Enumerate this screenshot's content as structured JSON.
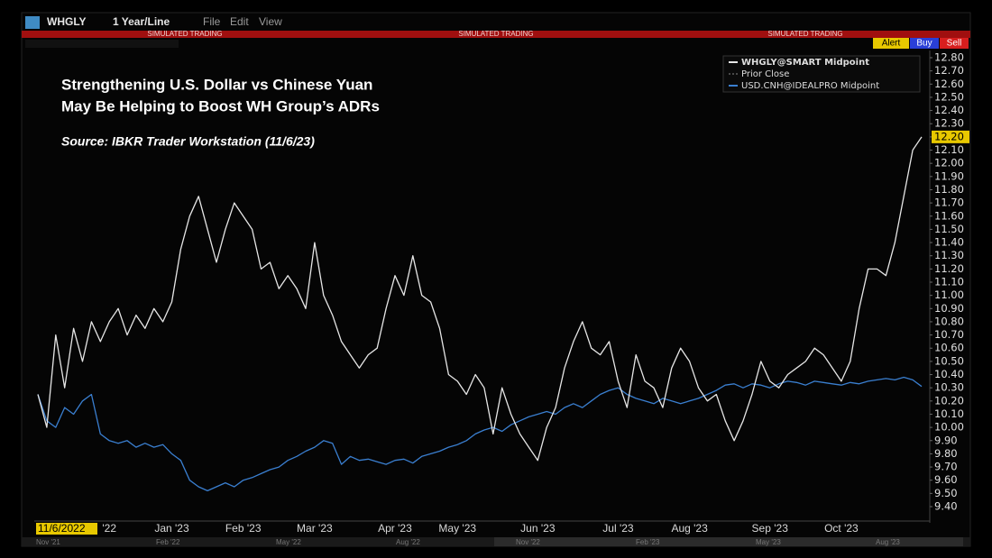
{
  "toolbar": {
    "symbol": "WHGLY",
    "period": "1 Year/Line",
    "menus": [
      "File",
      "Edit",
      "View"
    ],
    "banner": [
      "SIMULATED TRADING",
      "SIMULATED TRADING",
      "SIMULATED TRADING"
    ],
    "buttons": [
      "Alert",
      "Buy",
      "Sell"
    ]
  },
  "navigator": {
    "labels": [
      "Nov '21",
      "Feb '22",
      "May '22",
      "Aug '22",
      "Nov '22",
      "Feb '23",
      "May '23",
      "Aug '23"
    ]
  },
  "chart_data": {
    "type": "line",
    "annotations": [
      "Strengthening U.S. Dollar vs Chinese Yuan",
      "May Be Helping to Boost WH Group’s ADRs",
      "Source: IBKR Trader Workstation (11/6/23)"
    ],
    "legend_extra": "Prior Close",
    "last_price": {
      "value": 12.2,
      "label": "12.20"
    },
    "categories": [
      "11/6/2022",
      null,
      null,
      null,
      null,
      null,
      null,
      null,
      "'22",
      null,
      null,
      null,
      null,
      null,
      null,
      "Jan '23",
      null,
      null,
      null,
      null,
      null,
      null,
      null,
      "Feb '23",
      null,
      null,
      null,
      null,
      null,
      null,
      null,
      "Mar '23",
      null,
      null,
      null,
      null,
      null,
      null,
      null,
      null,
      "Apr '23",
      null,
      null,
      null,
      null,
      null,
      null,
      "May '23",
      null,
      null,
      null,
      null,
      null,
      null,
      null,
      null,
      "Jun '23",
      null,
      null,
      null,
      null,
      null,
      null,
      null,
      null,
      "Jul '23",
      null,
      null,
      null,
      null,
      null,
      null,
      null,
      "Aug '23",
      null,
      null,
      null,
      null,
      null,
      null,
      null,
      null,
      "Sep '23",
      null,
      null,
      null,
      null,
      null,
      null,
      null,
      "Oct '23",
      null,
      null,
      null,
      null,
      null,
      null,
      null,
      null,
      null
    ],
    "series": [
      {
        "name": "WHGLY@SMART Midpoint",
        "color": "#e6e6e6",
        "values": [
          10.25,
          10.0,
          10.7,
          10.3,
          10.75,
          10.5,
          10.8,
          10.65,
          10.8,
          10.9,
          10.7,
          10.85,
          10.75,
          10.9,
          10.8,
          10.95,
          11.35,
          11.6,
          11.75,
          11.5,
          11.25,
          11.5,
          11.7,
          11.6,
          11.5,
          11.2,
          11.25,
          11.05,
          11.15,
          11.05,
          10.9,
          11.4,
          11.0,
          10.85,
          10.65,
          10.55,
          10.45,
          10.55,
          10.6,
          10.9,
          11.15,
          11.0,
          11.3,
          11.0,
          10.95,
          10.75,
          10.4,
          10.35,
          10.25,
          10.4,
          10.3,
          9.95,
          10.3,
          10.1,
          9.95,
          9.85,
          9.75,
          10.0,
          10.15,
          10.45,
          10.65,
          10.8,
          10.6,
          10.55,
          10.65,
          10.35,
          10.15,
          10.55,
          10.35,
          10.3,
          10.15,
          10.45,
          10.6,
          10.5,
          10.3,
          10.2,
          10.25,
          10.05,
          9.9,
          10.05,
          10.25,
          10.5,
          10.35,
          10.3,
          10.4,
          10.45,
          10.5,
          10.6,
          10.55,
          10.45,
          10.35,
          10.5,
          10.9,
          11.2,
          11.2,
          11.15,
          11.4,
          11.75,
          12.1,
          12.2
        ]
      },
      {
        "name": "USD.CNH@IDEALPRO Midpoint",
        "color": "#3a7fd0",
        "values": [
          10.25,
          10.05,
          10.0,
          10.15,
          10.1,
          10.2,
          10.25,
          9.95,
          9.9,
          9.88,
          9.9,
          9.85,
          9.88,
          9.85,
          9.87,
          9.8,
          9.75,
          9.6,
          9.55,
          9.52,
          9.55,
          9.58,
          9.55,
          9.6,
          9.62,
          9.65,
          9.68,
          9.7,
          9.75,
          9.78,
          9.82,
          9.85,
          9.9,
          9.88,
          9.72,
          9.78,
          9.75,
          9.76,
          9.74,
          9.72,
          9.75,
          9.76,
          9.73,
          9.78,
          9.8,
          9.82,
          9.85,
          9.87,
          9.9,
          9.95,
          9.98,
          10.0,
          9.97,
          10.02,
          10.05,
          10.08,
          10.1,
          10.12,
          10.1,
          10.15,
          10.18,
          10.15,
          10.2,
          10.25,
          10.28,
          10.3,
          10.25,
          10.22,
          10.2,
          10.18,
          10.22,
          10.2,
          10.18,
          10.2,
          10.22,
          10.25,
          10.28,
          10.32,
          10.33,
          10.3,
          10.33,
          10.32,
          10.3,
          10.33,
          10.35,
          10.34,
          10.32,
          10.35,
          10.34,
          10.33,
          10.32,
          10.34,
          10.33,
          10.35,
          10.36,
          10.37,
          10.36,
          10.38,
          10.36,
          10.31
        ]
      }
    ],
    "ylim": [
      9.4,
      12.8
    ],
    "yticks": [
      {
        "value": 12.8,
        "label": "12.80"
      },
      {
        "value": 12.7,
        "label": "12.70"
      },
      {
        "value": 12.6,
        "label": "12.60"
      },
      {
        "value": 12.5,
        "label": "12.50"
      },
      {
        "value": 12.4,
        "label": "12.40"
      },
      {
        "value": 12.3,
        "label": "12.30"
      },
      {
        "value": 12.2,
        "label": "12.20"
      },
      {
        "value": 12.1,
        "label": "12.10"
      },
      {
        "value": 12.0,
        "label": "12.00"
      },
      {
        "value": 11.9,
        "label": "11.90"
      },
      {
        "value": 11.8,
        "label": "11.80"
      },
      {
        "value": 11.7,
        "label": "11.70"
      },
      {
        "value": 11.6,
        "label": "11.60"
      },
      {
        "value": 11.5,
        "label": "11.50"
      },
      {
        "value": 11.4,
        "label": "11.40"
      },
      {
        "value": 11.3,
        "label": "11.30"
      },
      {
        "value": 11.2,
        "label": "11.20"
      },
      {
        "value": 11.1,
        "label": "11.10"
      },
      {
        "value": 11.0,
        "label": "11.00"
      },
      {
        "value": 10.9,
        "label": "10.90"
      },
      {
        "value": 10.8,
        "label": "10.80"
      },
      {
        "value": 10.7,
        "label": "10.70"
      },
      {
        "value": 10.6,
        "label": "10.60"
      },
      {
        "value": 10.5,
        "label": "10.50"
      },
      {
        "value": 10.4,
        "label": "10.40"
      },
      {
        "value": 10.3,
        "label": "10.30"
      },
      {
        "value": 10.2,
        "label": "10.20"
      },
      {
        "value": 10.1,
        "label": "10.10"
      },
      {
        "value": 10.0,
        "label": "10.00"
      },
      {
        "value": 9.9,
        "label": "9.90"
      },
      {
        "value": 9.8,
        "label": "9.80"
      },
      {
        "value": 9.7,
        "label": "9.70"
      },
      {
        "value": 9.6,
        "label": "9.60"
      },
      {
        "value": 9.5,
        "label": "9.50"
      },
      {
        "value": 9.4,
        "label": "9.40"
      }
    ],
    "grid": false
  }
}
